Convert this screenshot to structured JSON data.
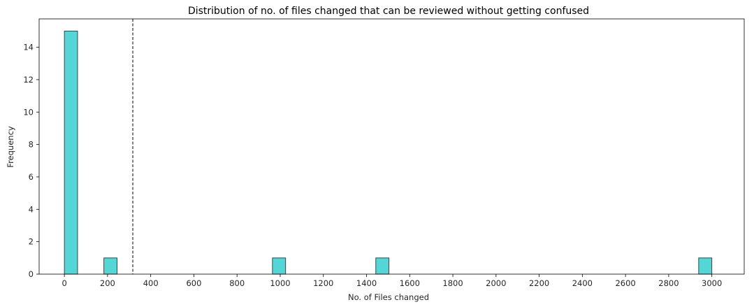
{
  "chart_data": {
    "type": "bar",
    "title": "Distribution of no. of files changed that can be reviewed without getting confused",
    "xlabel": "No. of Files changed",
    "ylabel": "Frequency",
    "xlim": [
      -117,
      3150
    ],
    "ylim": [
      0,
      15.75
    ],
    "xticks": [
      0,
      200,
      400,
      600,
      800,
      1000,
      1200,
      1400,
      1600,
      1800,
      2000,
      2200,
      2400,
      2600,
      2800,
      3000
    ],
    "yticks": [
      0,
      2,
      4,
      6,
      8,
      10,
      12,
      14
    ],
    "bins": [
      {
        "x0": 0,
        "x1": 61,
        "count": 15
      },
      {
        "x0": 183,
        "x1": 244,
        "count": 1
      },
      {
        "x0": 964,
        "x1": 1025,
        "count": 1
      },
      {
        "x0": 1443,
        "x1": 1504,
        "count": 1
      },
      {
        "x0": 2939,
        "x1": 3000,
        "count": 1
      }
    ],
    "reference_line": {
      "x": 317,
      "style": "dashed"
    },
    "grid": false,
    "bar_color": "#55d6d6",
    "edge_color": "#333333"
  }
}
